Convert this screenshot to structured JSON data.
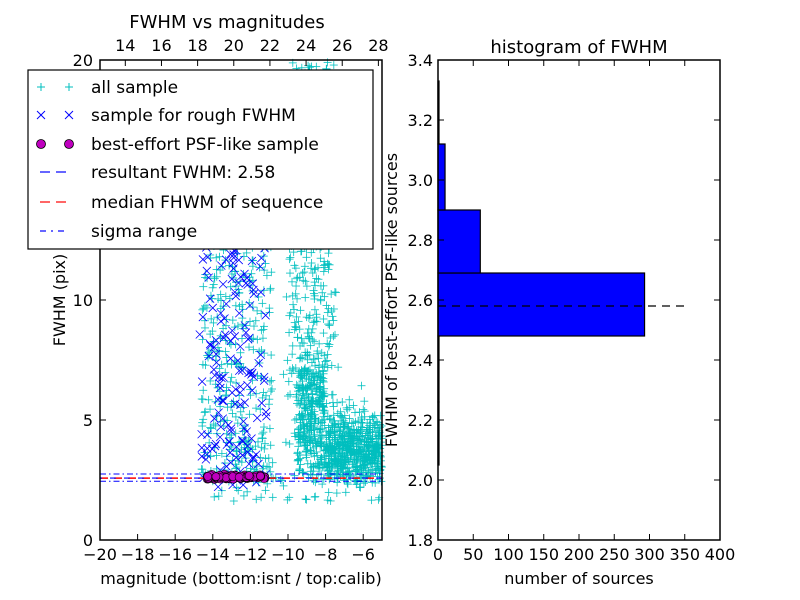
{
  "chart_data": [
    {
      "type": "scatter",
      "title": "FWHM vs magnitudes",
      "xlabel": "magnitude (bottom:isnt / top:calib)",
      "ylabel": "FWHM (pix)",
      "xlim": [
        -20,
        -5
      ],
      "ylim": [
        0,
        20
      ],
      "top_xlim": [
        12.6,
        28.2
      ],
      "xticks": [
        "−20",
        "−18",
        "−16",
        "−14",
        "−12",
        "−10",
        "−8",
        "−6"
      ],
      "xtick_values": [
        -20,
        -18,
        -16,
        -14,
        -12,
        -10,
        -8,
        -6
      ],
      "top_xticks": [
        "14",
        "16",
        "18",
        "20",
        "22",
        "24",
        "26",
        "28"
      ],
      "top_xtick_values": [
        14,
        16,
        18,
        20,
        22,
        24,
        26,
        28
      ],
      "yticks": [
        "0",
        "5",
        "10",
        "15",
        "20"
      ],
      "ytick_values": [
        0,
        5,
        10,
        15,
        20
      ],
      "legend_position": "upper-left",
      "series": [
        {
          "name": "all sample",
          "marker": "+",
          "color": "#00bfbf",
          "x_range": [
            -14.8,
            -5
          ],
          "y_range": [
            1.5,
            20
          ]
        },
        {
          "name": "sample for rough FWHM",
          "marker": "x",
          "color": "#0000ff",
          "x_range": [
            -14.8,
            -11
          ],
          "y_range": [
            2.1,
            12.5
          ]
        },
        {
          "name": "best-effort PSF-like sample",
          "marker": "o",
          "color": "#bf00bf",
          "x_range": [
            -14.4,
            -11.1
          ],
          "y_range": [
            2.4,
            2.9
          ]
        },
        {
          "name": "resultant FWHM: 2.58",
          "style": "dashed",
          "color": "#0000ff",
          "y": 2.58
        },
        {
          "name": "median FHWM of sequence",
          "style": "dashed",
          "color": "#ff0000",
          "y": 2.58
        },
        {
          "name": "sigma range",
          "style": "dashdot",
          "color": "#0000ff",
          "y": [
            2.45,
            2.75
          ]
        }
      ]
    },
    {
      "type": "bar",
      "orientation": "horizontal",
      "title": "histogram of FWHM",
      "xlabel": "number of sources",
      "ylabel": "FWHM of best-effort PSF-like sources",
      "xlim": [
        0,
        400
      ],
      "ylim": [
        1.8,
        3.4
      ],
      "xticks": [
        "0",
        "50",
        "100",
        "150",
        "200",
        "250",
        "300",
        "350",
        "400"
      ],
      "xtick_values": [
        0,
        50,
        100,
        150,
        200,
        250,
        300,
        350,
        400
      ],
      "yticks": [
        "1.8",
        "2.0",
        "2.2",
        "2.4",
        "2.6",
        "2.8",
        "3.0",
        "3.2",
        "3.4"
      ],
      "ytick_values": [
        1.8,
        2.0,
        2.2,
        2.4,
        2.6,
        2.8,
        3.0,
        3.2,
        3.4
      ],
      "bar_color": "#0000ff",
      "bins": [
        {
          "from": 2.05,
          "to": 2.26,
          "count": 1
        },
        {
          "from": 2.26,
          "to": 2.48,
          "count": 1
        },
        {
          "from": 2.48,
          "to": 2.69,
          "count": 293
        },
        {
          "from": 2.69,
          "to": 2.9,
          "count": 60
        },
        {
          "from": 2.9,
          "to": 3.12,
          "count": 10
        },
        {
          "from": 3.12,
          "to": 3.33,
          "count": 1
        }
      ],
      "reference_line": {
        "value": 2.58,
        "style": "dashed",
        "color": "#000000"
      }
    }
  ]
}
